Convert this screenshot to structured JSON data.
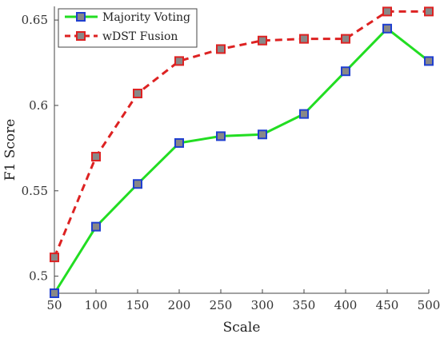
{
  "chart_data": {
    "type": "line",
    "xlabel": "Scale",
    "ylabel": "F1 Score",
    "x": [
      50,
      100,
      150,
      200,
      250,
      300,
      350,
      400,
      450,
      500
    ],
    "xlim": [
      50,
      500
    ],
    "ylim": [
      0.49,
      0.658
    ],
    "xticks": [
      "50",
      "100",
      "150",
      "200",
      "250",
      "300",
      "350",
      "400",
      "450",
      "500"
    ],
    "xtick_values": [
      50,
      100,
      150,
      200,
      250,
      300,
      350,
      400,
      450,
      500
    ],
    "yticks": [
      "0.5",
      "0.55",
      "0.6",
      "0.65"
    ],
    "ytick_values": [
      0.5,
      0.55,
      0.6,
      0.65
    ],
    "grid": false,
    "legend_position": "top-left",
    "series": [
      {
        "name": "Majority Voting",
        "line_color": "#22dd22",
        "line_style": "solid",
        "marker_fill": "#888888",
        "marker_edge": "#1f3fd0",
        "values": [
          0.49,
          0.529,
          0.554,
          0.578,
          0.582,
          0.583,
          0.595,
          0.62,
          0.645,
          0.626
        ]
      },
      {
        "name": "wDST Fusion",
        "line_color": "#dd2222",
        "line_style": "dashed",
        "marker_fill": "#888888",
        "marker_edge": "#dd2222",
        "values": [
          0.511,
          0.57,
          0.607,
          0.626,
          0.633,
          0.638,
          0.639,
          0.639,
          0.655,
          0.655
        ]
      }
    ]
  }
}
